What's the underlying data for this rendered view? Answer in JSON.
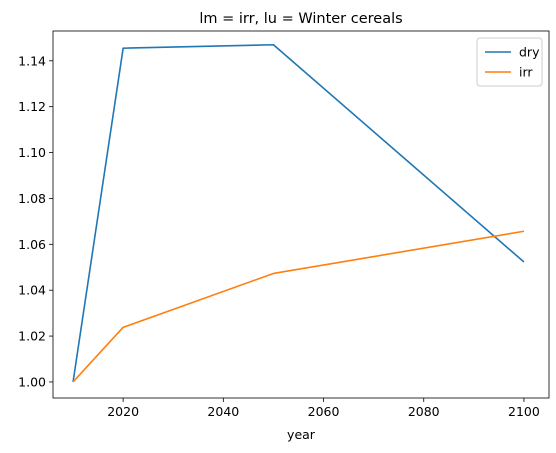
{
  "chart_data": {
    "type": "line",
    "title": "lm = irr, lu = Winter cereals",
    "xlabel": "year",
    "ylabel": "",
    "x": [
      2010,
      2020,
      2050,
      2100
    ],
    "xlim": [
      2006,
      2105
    ],
    "ylim": [
      0.993,
      1.153
    ],
    "xticks": [
      2020,
      2040,
      2060,
      2080,
      2100
    ],
    "yticks": [
      1.0,
      1.02,
      1.04,
      1.06,
      1.08,
      1.1,
      1.12,
      1.14
    ],
    "ytick_labels": [
      "1.00",
      "1.02",
      "1.04",
      "1.06",
      "1.08",
      "1.10",
      "1.12",
      "1.14"
    ],
    "grid": false,
    "legend_position": "top-right",
    "series": [
      {
        "name": "dry",
        "color": "#1f77b4",
        "values": [
          1.0,
          1.1455,
          1.147,
          1.0523
        ]
      },
      {
        "name": "irr",
        "color": "#ff7f0e",
        "values": [
          1.0,
          1.0238,
          1.0473,
          1.0657
        ]
      }
    ]
  }
}
